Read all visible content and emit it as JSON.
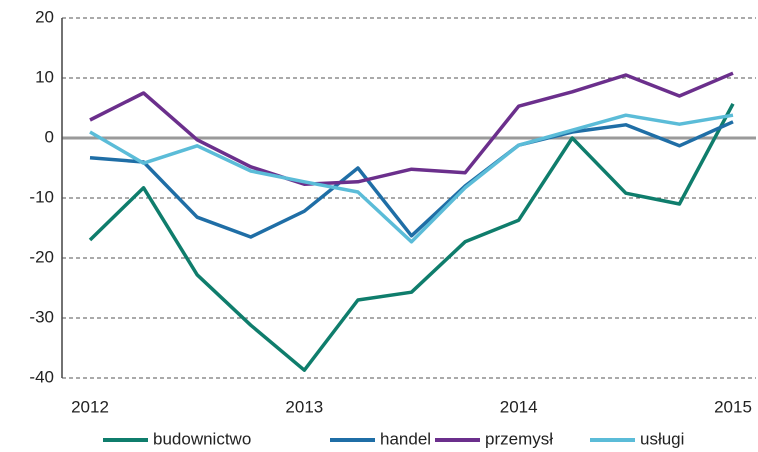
{
  "chart_data": {
    "type": "line",
    "categories": [
      "2012",
      null,
      null,
      null,
      "2013",
      null,
      null,
      null,
      "2014",
      null,
      null,
      null,
      "2015"
    ],
    "series": [
      {
        "name": "budownictwo",
        "color": "#0f7d6c",
        "values": [
          -17,
          -8.3,
          -22.8,
          -31.2,
          -38.7,
          -27,
          -25.7,
          -17.3,
          -13.7,
          0,
          -9.2,
          -11,
          5.7
        ]
      },
      {
        "name": "handel",
        "color": "#1f6ea6",
        "values": [
          -3.3,
          -4,
          -13.2,
          -16.5,
          -12.2,
          -5,
          -16.3,
          -8,
          -1.2,
          1,
          2.2,
          -1.3,
          2.7
        ]
      },
      {
        "name": "przemysł",
        "color": "#6b2f8c",
        "values": [
          3,
          7.5,
          -0.3,
          -4.8,
          -7.7,
          -7.3,
          -5.2,
          -5.8,
          5.3,
          7.7,
          10.5,
          7,
          10.8
        ]
      },
      {
        "name": "usługi",
        "color": "#5bbcd8",
        "values": [
          1,
          -4.2,
          -1.3,
          -5.5,
          -7.3,
          -9,
          -17.3,
          -8.3,
          -1.2,
          1.3,
          3.8,
          2.3,
          3.8
        ]
      }
    ],
    "ylim": [
      -40,
      20
    ],
    "yticks": [
      -40,
      -30,
      -20,
      -10,
      0,
      10,
      20
    ],
    "grid": true,
    "legend": "bottom"
  }
}
